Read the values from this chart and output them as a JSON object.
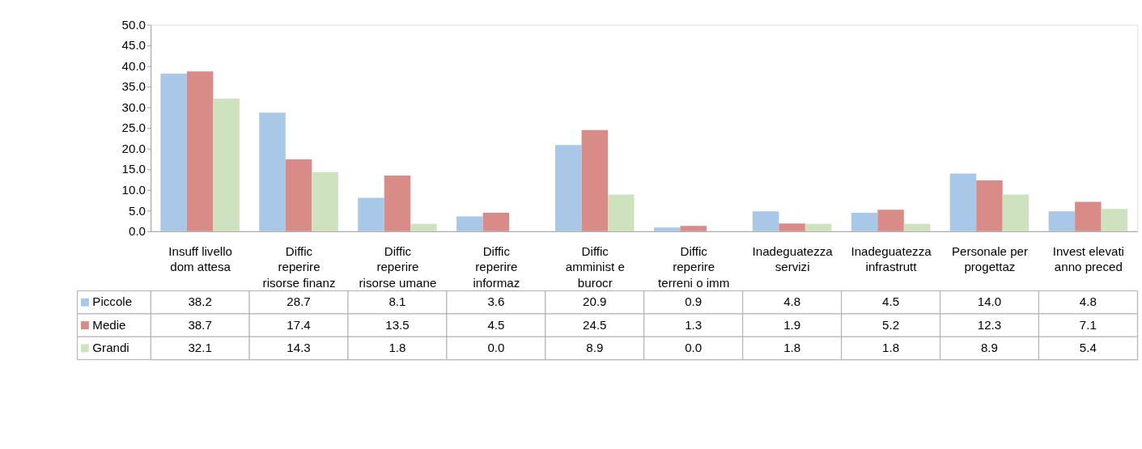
{
  "chart_data": {
    "type": "bar",
    "categories": [
      "Insuff livello dom attesa",
      "Diffic reperire risorse finanz",
      "Diffic reperire risorse umane",
      "Diffic reperire informaz",
      "Diffic amminist e burocr",
      "Diffic reperire terreni o imm",
      "Inadeguatezza servizi",
      "Inadeguatezza infrastrutt",
      "Personale per progettaz",
      "Invest elevati anno preced"
    ],
    "series": [
      {
        "name": "Piccole",
        "color": "#a9c8e8",
        "values": [
          38.2,
          28.7,
          8.1,
          3.6,
          20.9,
          0.9,
          4.8,
          4.5,
          14.0,
          4.8
        ],
        "value_labels": [
          "38.2",
          "28.7",
          "8.1",
          "3.6",
          "20.9",
          "0.9",
          "4.8",
          "4.5",
          "14.0",
          "4.8"
        ]
      },
      {
        "name": "Medie",
        "color": "#d98b87",
        "values": [
          38.7,
          17.4,
          13.5,
          4.5,
          24.5,
          1.3,
          1.9,
          5.2,
          12.3,
          7.1
        ],
        "value_labels": [
          "38.7",
          "17.4",
          "13.5",
          "4.5",
          "24.5",
          "1.3",
          "1.9",
          "5.2",
          "12.3",
          "7.1"
        ]
      },
      {
        "name": "Grandi",
        "color": "#cfe2c0",
        "values": [
          32.1,
          14.3,
          1.8,
          0.0,
          8.9,
          0.0,
          1.8,
          1.8,
          8.9,
          5.4
        ],
        "value_labels": [
          "32.1",
          "14.3",
          "1.8",
          "0.0",
          "8.9",
          "0.0",
          "1.8",
          "1.8",
          "8.9",
          "5.4"
        ]
      }
    ],
    "ylim": [
      0,
      50
    ],
    "yticks": [
      {
        "value": 0,
        "label": "0.0"
      },
      {
        "value": 5,
        "label": "5.0"
      },
      {
        "value": 10,
        "label": "10.0"
      },
      {
        "value": 15,
        "label": "15.0"
      },
      {
        "value": 20,
        "label": "20.0"
      },
      {
        "value": 25,
        "label": "25.0"
      },
      {
        "value": 30,
        "label": "30.0"
      },
      {
        "value": 35,
        "label": "35.0"
      },
      {
        "value": 40,
        "label": "40.0"
      },
      {
        "value": 45,
        "label": "45.0"
      },
      {
        "value": 50,
        "label": "50.0"
      }
    ],
    "legend": "bottom left",
    "grid": false
  }
}
